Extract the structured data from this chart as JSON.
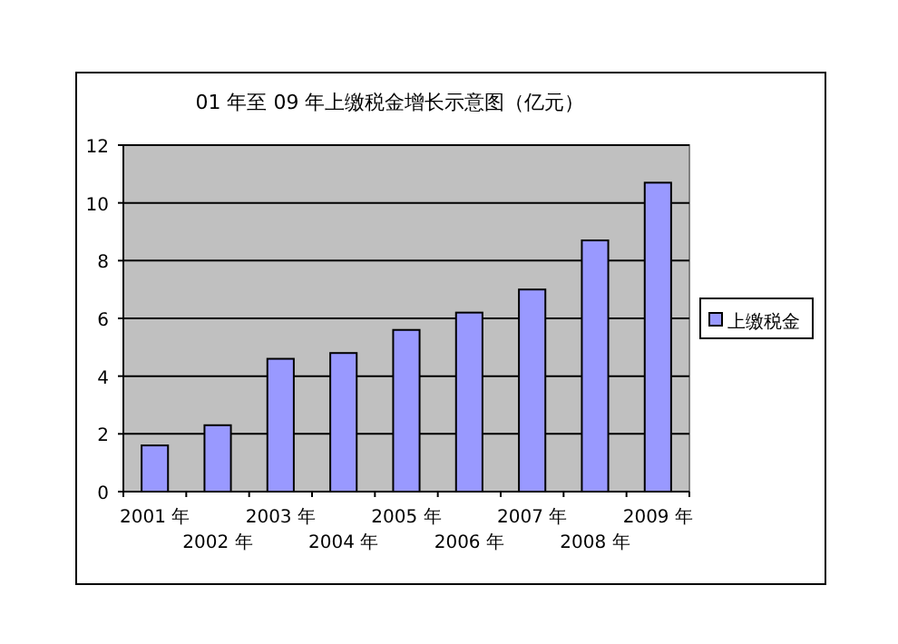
{
  "chart_data": {
    "type": "bar",
    "title": "01 年至 09 年上缴税金增长示意图（亿元）",
    "categories": [
      "2001 年",
      "2002 年",
      "2003 年",
      "2004 年",
      "2005 年",
      "2006 年",
      "2007 年",
      "2008 年",
      "2009 年"
    ],
    "series": [
      {
        "name": "上缴税金",
        "color": "#9999ff",
        "values": [
          1.6,
          2.3,
          4.6,
          4.8,
          5.6,
          6.2,
          7.0,
          8.7,
          10.7
        ]
      }
    ],
    "ylim": [
      0,
      12
    ],
    "yticks": [
      0,
      2,
      4,
      6,
      8,
      10,
      12
    ],
    "grid": "y",
    "legend": "right"
  }
}
